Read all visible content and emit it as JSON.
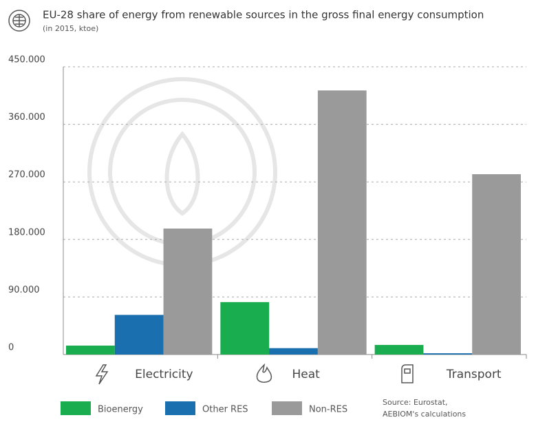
{
  "chart_data": {
    "type": "bar",
    "title": "EU-28 share of energy from renewable sources in the gross final energy consumption",
    "subtitle": "(in 2015, ktoe)",
    "categories": [
      "Electricity",
      "Heat",
      "Transport"
    ],
    "series": [
      {
        "name": "Bioenergy",
        "color": "#1aad4f",
        "values": [
          14000,
          82000,
          15000
        ]
      },
      {
        "name": "Other RES",
        "color": "#1a6fae",
        "values": [
          62000,
          10000,
          2000
        ]
      },
      {
        "name": "Non-RES",
        "color": "#9a9a9a",
        "values": [
          197000,
          413000,
          282000
        ]
      }
    ],
    "ylim": [
      0,
      450000
    ],
    "yticks": [
      0,
      {
        "value": 90000,
        "label": "90.000"
      },
      {
        "value": 180000,
        "label": "180.000"
      },
      {
        "value": 270000,
        "label": "270.000"
      },
      {
        "value": 360000,
        "label": "360.000"
      },
      {
        "value": 450000,
        "label": "450.000"
      }
    ],
    "grid": true,
    "legend": "bottom",
    "source": [
      "Source: Eurostat,",
      "AEBIOM's calculations"
    ]
  }
}
